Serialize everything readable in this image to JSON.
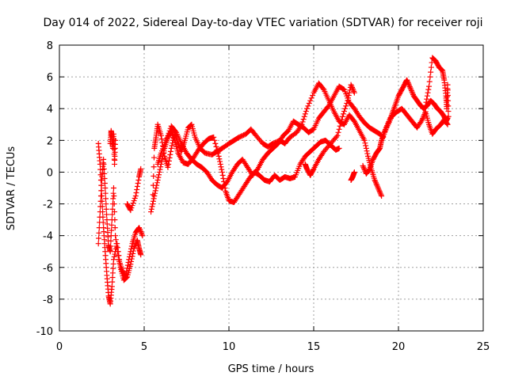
{
  "chart_data": {
    "type": "scatter",
    "title": "Day 014 of 2022, Sidereal Day-to-day VTEC variation (SDTVAR) for receiver roji",
    "xlabel": "GPS time / hours",
    "ylabel": "SDTVAR / TECUs",
    "xlim": [
      0,
      25
    ],
    "ylim": [
      -10,
      8
    ],
    "xticks": [
      0,
      5,
      10,
      15,
      20,
      25
    ],
    "yticks": [
      -10,
      -8,
      -6,
      -4,
      -2,
      0,
      2,
      4,
      6,
      8
    ],
    "grid": true,
    "marker": "+",
    "series": [
      {
        "name": "SDTVAR",
        "color": "#ff0000",
        "tracks": [
          [
            [
              2.3,
              1.8
            ],
            [
              2.4,
              0.5
            ],
            [
              2.5,
              -1.5
            ],
            [
              2.6,
              -3.5
            ],
            [
              2.7,
              -5.0
            ],
            [
              2.8,
              -6.5
            ],
            [
              2.9,
              -7.8
            ],
            [
              3.0,
              -8.3
            ],
            [
              3.1,
              -7.2
            ],
            [
              3.2,
              -5.5
            ],
            [
              3.4,
              -4.5
            ],
            [
              3.6,
              -6.0
            ],
            [
              3.8,
              -6.8
            ],
            [
              4.0,
              -6.6
            ],
            [
              4.2,
              -5.8
            ],
            [
              4.4,
              -4.8
            ],
            [
              4.6,
              -4.3
            ],
            [
              4.7,
              -4.8
            ],
            [
              4.8,
              -5.2
            ]
          ],
          [
            [
              2.3,
              -4.5
            ],
            [
              2.4,
              -2.5
            ],
            [
              2.5,
              -0.5
            ],
            [
              2.6,
              0.8
            ],
            [
              2.7,
              -1.0
            ],
            [
              2.8,
              -3.0
            ],
            [
              2.9,
              -4.6
            ],
            [
              3.0,
              -5.0
            ],
            [
              3.1,
              -3.0
            ],
            [
              3.2,
              -1.0
            ],
            [
              3.3,
              -4.0
            ],
            [
              3.5,
              -5.5
            ],
            [
              3.7,
              -6.2
            ],
            [
              3.9,
              -6.6
            ],
            [
              4.1,
              -5.5
            ],
            [
              4.3,
              -4.5
            ],
            [
              4.5,
              -3.8
            ],
            [
              4.7,
              -3.5
            ],
            [
              4.9,
              -4.0
            ]
          ],
          [
            [
              3.0,
              1.8
            ],
            [
              3.05,
              2.6
            ],
            [
              3.1,
              2.2
            ],
            [
              3.15,
              1.5
            ],
            [
              3.2,
              2.4
            ],
            [
              3.25,
              0.5
            ],
            [
              3.3,
              2.0
            ]
          ],
          [
            [
              4.0,
              -2.0
            ],
            [
              4.2,
              -2.4
            ],
            [
              4.5,
              -1.5
            ],
            [
              4.7,
              -0.3
            ],
            [
              4.8,
              0.2
            ]
          ],
          [
            [
              5.5,
              -2.0
            ],
            [
              5.6,
              1.5
            ],
            [
              5.7,
              2.2
            ],
            [
              5.8,
              3.0
            ],
            [
              6.0,
              2.3
            ],
            [
              6.2,
              1.0
            ],
            [
              6.4,
              0.3
            ],
            [
              6.6,
              1.5
            ],
            [
              6.8,
              2.5
            ],
            [
              7.0,
              1.8
            ],
            [
              7.2,
              1.3
            ],
            [
              7.4,
              2.0
            ],
            [
              7.6,
              2.8
            ],
            [
              7.8,
              3.0
            ],
            [
              8.0,
              2.2
            ],
            [
              8.3,
              1.5
            ],
            [
              8.6,
              1.2
            ],
            [
              9.0,
              1.1
            ],
            [
              9.3,
              1.3
            ],
            [
              9.6,
              1.5
            ],
            [
              10.0,
              1.8
            ],
            [
              10.3,
              2.0
            ],
            [
              10.6,
              2.2
            ],
            [
              11.0,
              2.4
            ],
            [
              11.3,
              2.7
            ],
            [
              11.6,
              2.3
            ],
            [
              12.0,
              1.8
            ],
            [
              12.3,
              1.6
            ],
            [
              12.6,
              1.8
            ],
            [
              13.0,
              2.0
            ],
            [
              13.3,
              1.8
            ],
            [
              13.6,
              2.2
            ],
            [
              14.0,
              2.5
            ],
            [
              14.3,
              3.0
            ],
            [
              14.6,
              4.0
            ],
            [
              15.0,
              5.0
            ],
            [
              15.3,
              5.6
            ],
            [
              15.6,
              5.2
            ],
            [
              15.9,
              4.5
            ],
            [
              16.2,
              3.8
            ],
            [
              16.5,
              3.2
            ],
            [
              16.8,
              3.0
            ],
            [
              17.1,
              3.6
            ],
            [
              17.4,
              3.2
            ],
            [
              17.7,
              2.6
            ],
            [
              18.0,
              2.0
            ],
            [
              18.2,
              1.0
            ],
            [
              18.4,
              0.2
            ],
            [
              18.6,
              -0.5
            ],
            [
              18.8,
              -1.0
            ],
            [
              19.0,
              -1.5
            ]
          ],
          [
            [
              5.4,
              -2.5
            ],
            [
              5.6,
              -1.5
            ],
            [
              5.8,
              -0.5
            ],
            [
              6.0,
              0.5
            ],
            [
              6.2,
              1.5
            ],
            [
              6.4,
              2.2
            ],
            [
              6.6,
              2.6
            ],
            [
              6.8,
              2.0
            ],
            [
              7.0,
              1.2
            ],
            [
              7.3,
              0.6
            ],
            [
              7.6,
              0.5
            ],
            [
              7.9,
              0.9
            ],
            [
              8.2,
              1.4
            ],
            [
              8.5,
              1.8
            ],
            [
              8.8,
              2.1
            ],
            [
              9.1,
              2.2
            ],
            [
              9.4,
              1.0
            ],
            [
              9.6,
              0.0
            ],
            [
              9.8,
              -1.2
            ],
            [
              10.0,
              -1.8
            ],
            [
              10.3,
              -1.9
            ],
            [
              10.6,
              -1.4
            ],
            [
              10.9,
              -0.9
            ],
            [
              11.2,
              -0.4
            ],
            [
              11.5,
              0.0
            ],
            [
              11.8,
              -0.2
            ],
            [
              12.1,
              -0.5
            ],
            [
              12.4,
              -0.6
            ],
            [
              12.7,
              -0.2
            ],
            [
              13.0,
              -0.5
            ],
            [
              13.3,
              -0.3
            ],
            [
              13.6,
              -0.4
            ],
            [
              13.9,
              -0.3
            ],
            [
              14.2,
              0.5
            ],
            [
              14.5,
              1.0
            ],
            [
              14.8,
              1.3
            ],
            [
              15.1,
              1.6
            ],
            [
              15.4,
              1.9
            ],
            [
              15.7,
              2.0
            ],
            [
              16.0,
              1.7
            ],
            [
              16.3,
              1.4
            ],
            [
              16.5,
              1.5
            ]
          ],
          [
            [
              5.8,
              0.5
            ],
            [
              6.0,
              1.2
            ],
            [
              6.3,
              2.0
            ],
            [
              6.6,
              2.9
            ],
            [
              6.9,
              2.5
            ],
            [
              7.2,
              1.8
            ],
            [
              7.5,
              1.2
            ],
            [
              7.8,
              0.8
            ],
            [
              8.1,
              0.5
            ],
            [
              8.4,
              0.3
            ],
            [
              8.7,
              0.0
            ],
            [
              9.0,
              -0.5
            ],
            [
              9.3,
              -0.8
            ],
            [
              9.6,
              -1.0
            ],
            [
              9.9,
              -0.6
            ],
            [
              10.2,
              0.0
            ],
            [
              10.5,
              0.5
            ],
            [
              10.8,
              0.8
            ],
            [
              11.1,
              0.3
            ],
            [
              11.4,
              -0.2
            ],
            [
              11.7,
              0.2
            ],
            [
              12.0,
              0.8
            ],
            [
              12.3,
              1.2
            ],
            [
              12.6,
              1.5
            ],
            [
              12.9,
              1.8
            ],
            [
              13.2,
              2.3
            ],
            [
              13.5,
              2.6
            ],
            [
              13.8,
              3.2
            ],
            [
              14.1,
              3.0
            ],
            [
              14.4,
              2.8
            ],
            [
              14.7,
              2.5
            ],
            [
              15.0,
              2.7
            ],
            [
              15.3,
              3.4
            ],
            [
              15.6,
              3.8
            ],
            [
              15.9,
              4.2
            ],
            [
              16.2,
              4.8
            ],
            [
              16.5,
              5.4
            ],
            [
              16.8,
              5.2
            ],
            [
              17.1,
              4.4
            ],
            [
              17.4,
              4.0
            ],
            [
              17.7,
              3.5
            ],
            [
              18.0,
              3.1
            ],
            [
              18.3,
              2.8
            ],
            [
              18.6,
              2.6
            ],
            [
              18.9,
              2.4
            ],
            [
              19.1,
              2.2
            ]
          ],
          [
            [
              14.5,
              0.5
            ],
            [
              14.6,
              0.2
            ],
            [
              14.8,
              -0.2
            ],
            [
              15.0,
              0.2
            ],
            [
              15.3,
              0.8
            ],
            [
              15.6,
              1.3
            ],
            [
              16.0,
              1.8
            ],
            [
              16.4,
              2.3
            ],
            [
              16.7,
              3.5
            ],
            [
              17.0,
              4.5
            ],
            [
              17.2,
              5.5
            ],
            [
              17.4,
              5.0
            ]
          ],
          [
            [
              17.2,
              -0.5
            ],
            [
              17.3,
              -0.3
            ],
            [
              17.4,
              0.0
            ]
          ],
          [
            [
              17.9,
              0.4
            ],
            [
              18.1,
              -0.1
            ],
            [
              18.3,
              0.2
            ],
            [
              18.5,
              0.8
            ],
            [
              18.7,
              1.2
            ],
            [
              18.9,
              1.5
            ],
            [
              19.0,
              2.0
            ],
            [
              19.2,
              2.6
            ],
            [
              19.4,
              3.1
            ],
            [
              19.6,
              3.6
            ],
            [
              19.8,
              4.2
            ],
            [
              20.0,
              4.8
            ],
            [
              20.2,
              5.2
            ],
            [
              20.4,
              5.6
            ],
            [
              20.5,
              5.8
            ],
            [
              20.7,
              5.3
            ],
            [
              20.9,
              4.8
            ],
            [
              21.1,
              4.5
            ],
            [
              21.3,
              4.2
            ],
            [
              21.5,
              4.0
            ],
            [
              21.7,
              4.2
            ],
            [
              21.9,
              4.5
            ],
            [
              22.1,
              4.3
            ],
            [
              22.3,
              4.0
            ],
            [
              22.5,
              3.8
            ],
            [
              22.7,
              3.5
            ],
            [
              22.8,
              3.2
            ],
            [
              22.9,
              3.4
            ]
          ],
          [
            [
              19.0,
              2.0
            ],
            [
              19.3,
              2.8
            ],
            [
              19.6,
              3.5
            ],
            [
              19.9,
              3.8
            ],
            [
              20.2,
              4.0
            ],
            [
              20.5,
              3.6
            ],
            [
              20.8,
              3.2
            ],
            [
              21.1,
              2.8
            ],
            [
              21.4,
              3.3
            ],
            [
              21.6,
              3.8
            ],
            [
              21.8,
              3.0
            ],
            [
              22.0,
              2.4
            ],
            [
              22.2,
              2.7
            ],
            [
              22.5,
              3.0
            ],
            [
              22.7,
              3.3
            ],
            [
              22.9,
              3.0
            ]
          ],
          [
            [
              21.6,
              4.2
            ],
            [
              21.8,
              5.4
            ],
            [
              22.0,
              7.2
            ],
            [
              22.2,
              7.0
            ],
            [
              22.4,
              6.6
            ],
            [
              22.6,
              6.4
            ],
            [
              22.7,
              5.8
            ],
            [
              22.8,
              4.8
            ],
            [
              22.85,
              4.0
            ],
            [
              22.9,
              5.5
            ],
            [
              22.95,
              3.5
            ]
          ]
        ]
      }
    ]
  }
}
